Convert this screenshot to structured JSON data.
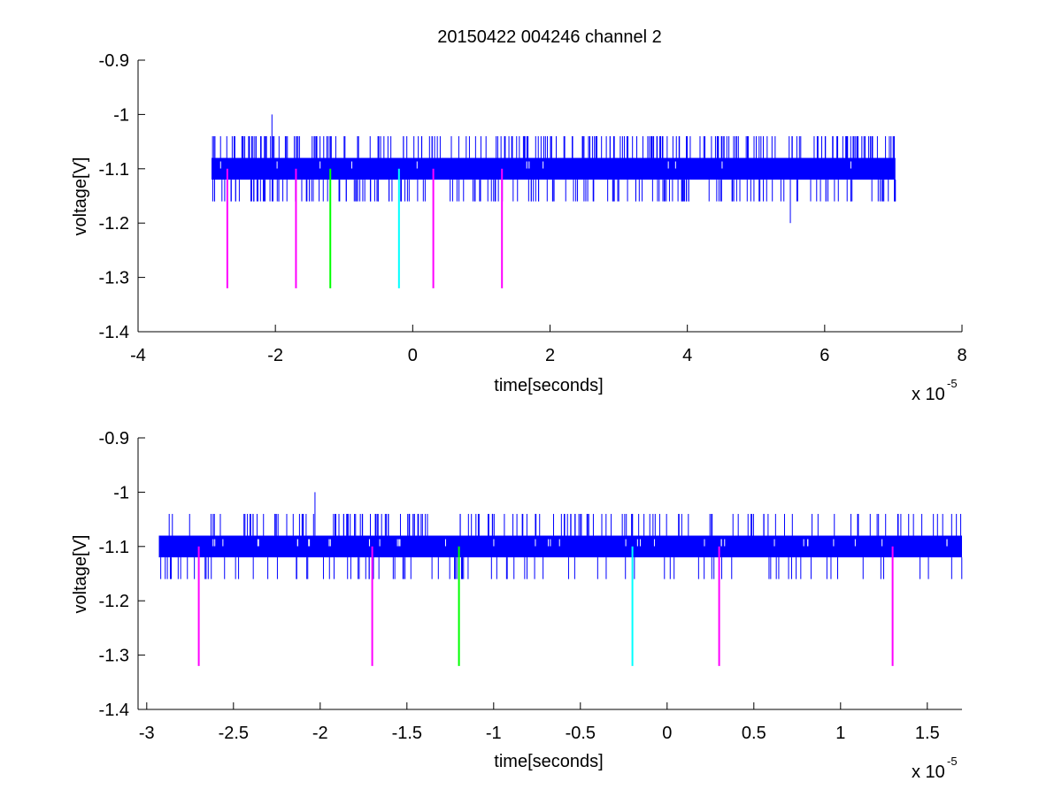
{
  "chart_data": [
    {
      "type": "line",
      "title": "20150422 004246 channel 2",
      "xlabel": "time[seconds]",
      "ylabel": "voltage[V]",
      "x_multiplier_label": "x 10",
      "x_multiplier_exponent": "-5",
      "xlim": [
        -4,
        8
      ],
      "ylim": [
        -1.4,
        -0.9
      ],
      "xticks": [
        "-4",
        "-2",
        "0",
        "2",
        "4",
        "6",
        "8"
      ],
      "xtick_values": [
        -4,
        -2,
        0,
        2,
        4,
        6,
        8
      ],
      "yticks": [
        "-0.9",
        "-1",
        "-1.1",
        "-1.2",
        "-1.3",
        "-1.4"
      ],
      "ytick_values": [
        -0.9,
        -1.0,
        -1.1,
        -1.2,
        -1.3,
        -1.4
      ],
      "grid": false,
      "signal": {
        "color": "#0000ff",
        "x_range": [
          -2.93,
          7.03
        ],
        "band": [
          -1.12,
          -1.08
        ],
        "spike_levels": [
          -1.04,
          -1.16
        ],
        "spike_count": 420,
        "peaks": [
          {
            "x": -2.05,
            "y": -1.0
          },
          {
            "x": 5.5,
            "y": -1.2
          }
        ]
      },
      "markers": [
        {
          "x": -2.7,
          "y_top": -1.1,
          "y_bottom": -1.32,
          "color": "#ff00ff"
        },
        {
          "x": -1.7,
          "y_top": -1.1,
          "y_bottom": -1.32,
          "color": "#ff00ff"
        },
        {
          "x": -1.2,
          "y_top": -1.1,
          "y_bottom": -1.32,
          "color": "#00ff00"
        },
        {
          "x": -0.2,
          "y_top": -1.1,
          "y_bottom": -1.32,
          "color": "#00ffff"
        },
        {
          "x": 0.3,
          "y_top": -1.1,
          "y_bottom": -1.32,
          "color": "#ff00ff"
        },
        {
          "x": 1.3,
          "y_top": -1.1,
          "y_bottom": -1.32,
          "color": "#ff00ff"
        }
      ]
    },
    {
      "type": "line",
      "title": "",
      "xlabel": "time[seconds]",
      "ylabel": "voltage[V]",
      "x_multiplier_label": "x 10",
      "x_multiplier_exponent": "-5",
      "xlim": [
        -3.05,
        1.7
      ],
      "ylim": [
        -1.4,
        -0.9
      ],
      "xticks": [
        "-3",
        "-2.5",
        "-2",
        "-1.5",
        "-1",
        "-0.5",
        "0",
        "0.5",
        "1",
        "1.5"
      ],
      "xtick_values": [
        -3,
        -2.5,
        -2,
        -1.5,
        -1,
        -0.5,
        0,
        0.5,
        1,
        1.5
      ],
      "yticks": [
        "-0.9",
        "-1",
        "-1.1",
        "-1.2",
        "-1.3",
        "-1.4"
      ],
      "ytick_values": [
        -0.9,
        -1.0,
        -1.1,
        -1.2,
        -1.3,
        -1.4
      ],
      "grid": false,
      "signal": {
        "color": "#0000ff",
        "x_range": [
          -2.93,
          1.7
        ],
        "band": [
          -1.12,
          -1.08
        ],
        "spike_levels": [
          -1.04,
          -1.16
        ],
        "spike_count": 260,
        "peaks": [
          {
            "x": -2.03,
            "y": -1.0
          }
        ]
      },
      "markers": [
        {
          "x": -2.7,
          "y_top": -1.1,
          "y_bottom": -1.32,
          "color": "#ff00ff"
        },
        {
          "x": -1.7,
          "y_top": -1.1,
          "y_bottom": -1.32,
          "color": "#ff00ff"
        },
        {
          "x": -1.2,
          "y_top": -1.1,
          "y_bottom": -1.32,
          "color": "#00ff00"
        },
        {
          "x": -0.2,
          "y_top": -1.1,
          "y_bottom": -1.32,
          "color": "#00ffff"
        },
        {
          "x": 0.3,
          "y_top": -1.1,
          "y_bottom": -1.32,
          "color": "#ff00ff"
        },
        {
          "x": 1.3,
          "y_top": -1.1,
          "y_bottom": -1.32,
          "color": "#ff00ff"
        }
      ]
    }
  ]
}
